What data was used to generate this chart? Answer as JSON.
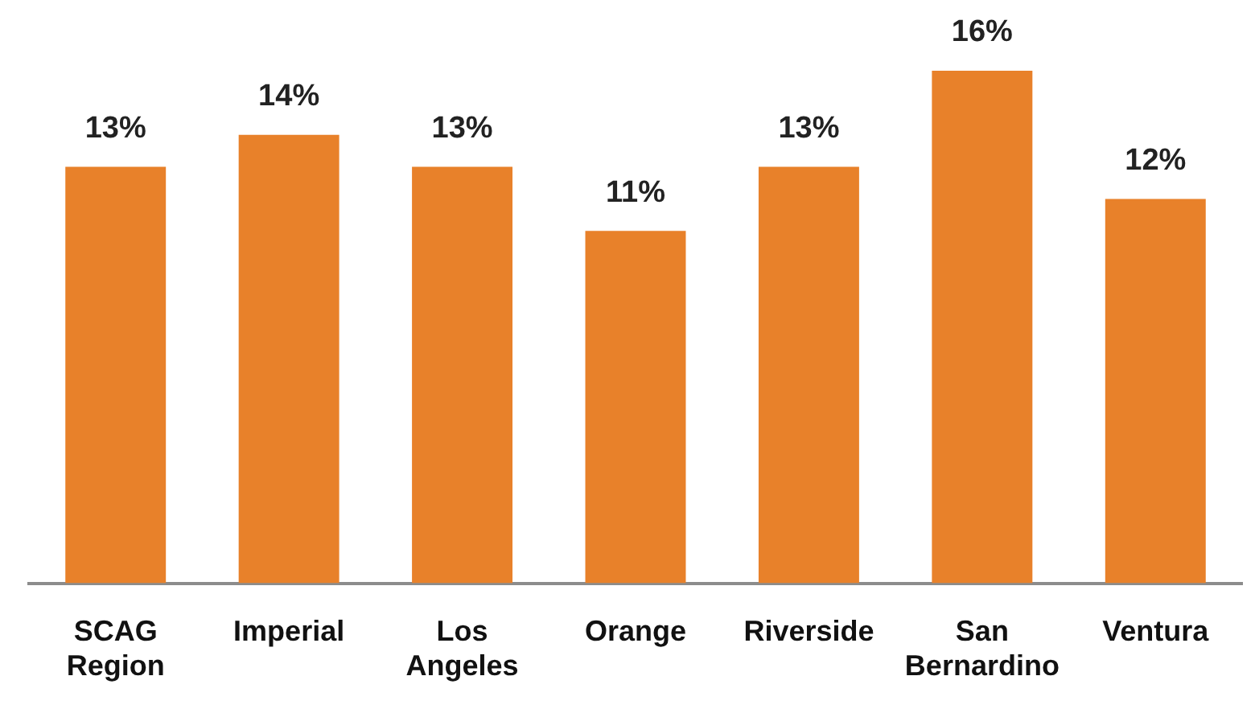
{
  "chart_data": {
    "type": "bar",
    "categories": [
      "SCAG Region",
      "Imperial",
      "Los Angeles",
      "Orange",
      "Riverside",
      "San Bernardino",
      "Ventura"
    ],
    "values": [
      13,
      14,
      13,
      11,
      13,
      16,
      12
    ],
    "color": "#e8812a",
    "data_labels": true,
    "value_labels": [
      "13%",
      "14%",
      "13%",
      "11%",
      "13%",
      "16%",
      "12%"
    ],
    "grid": false,
    "legend": false
  }
}
